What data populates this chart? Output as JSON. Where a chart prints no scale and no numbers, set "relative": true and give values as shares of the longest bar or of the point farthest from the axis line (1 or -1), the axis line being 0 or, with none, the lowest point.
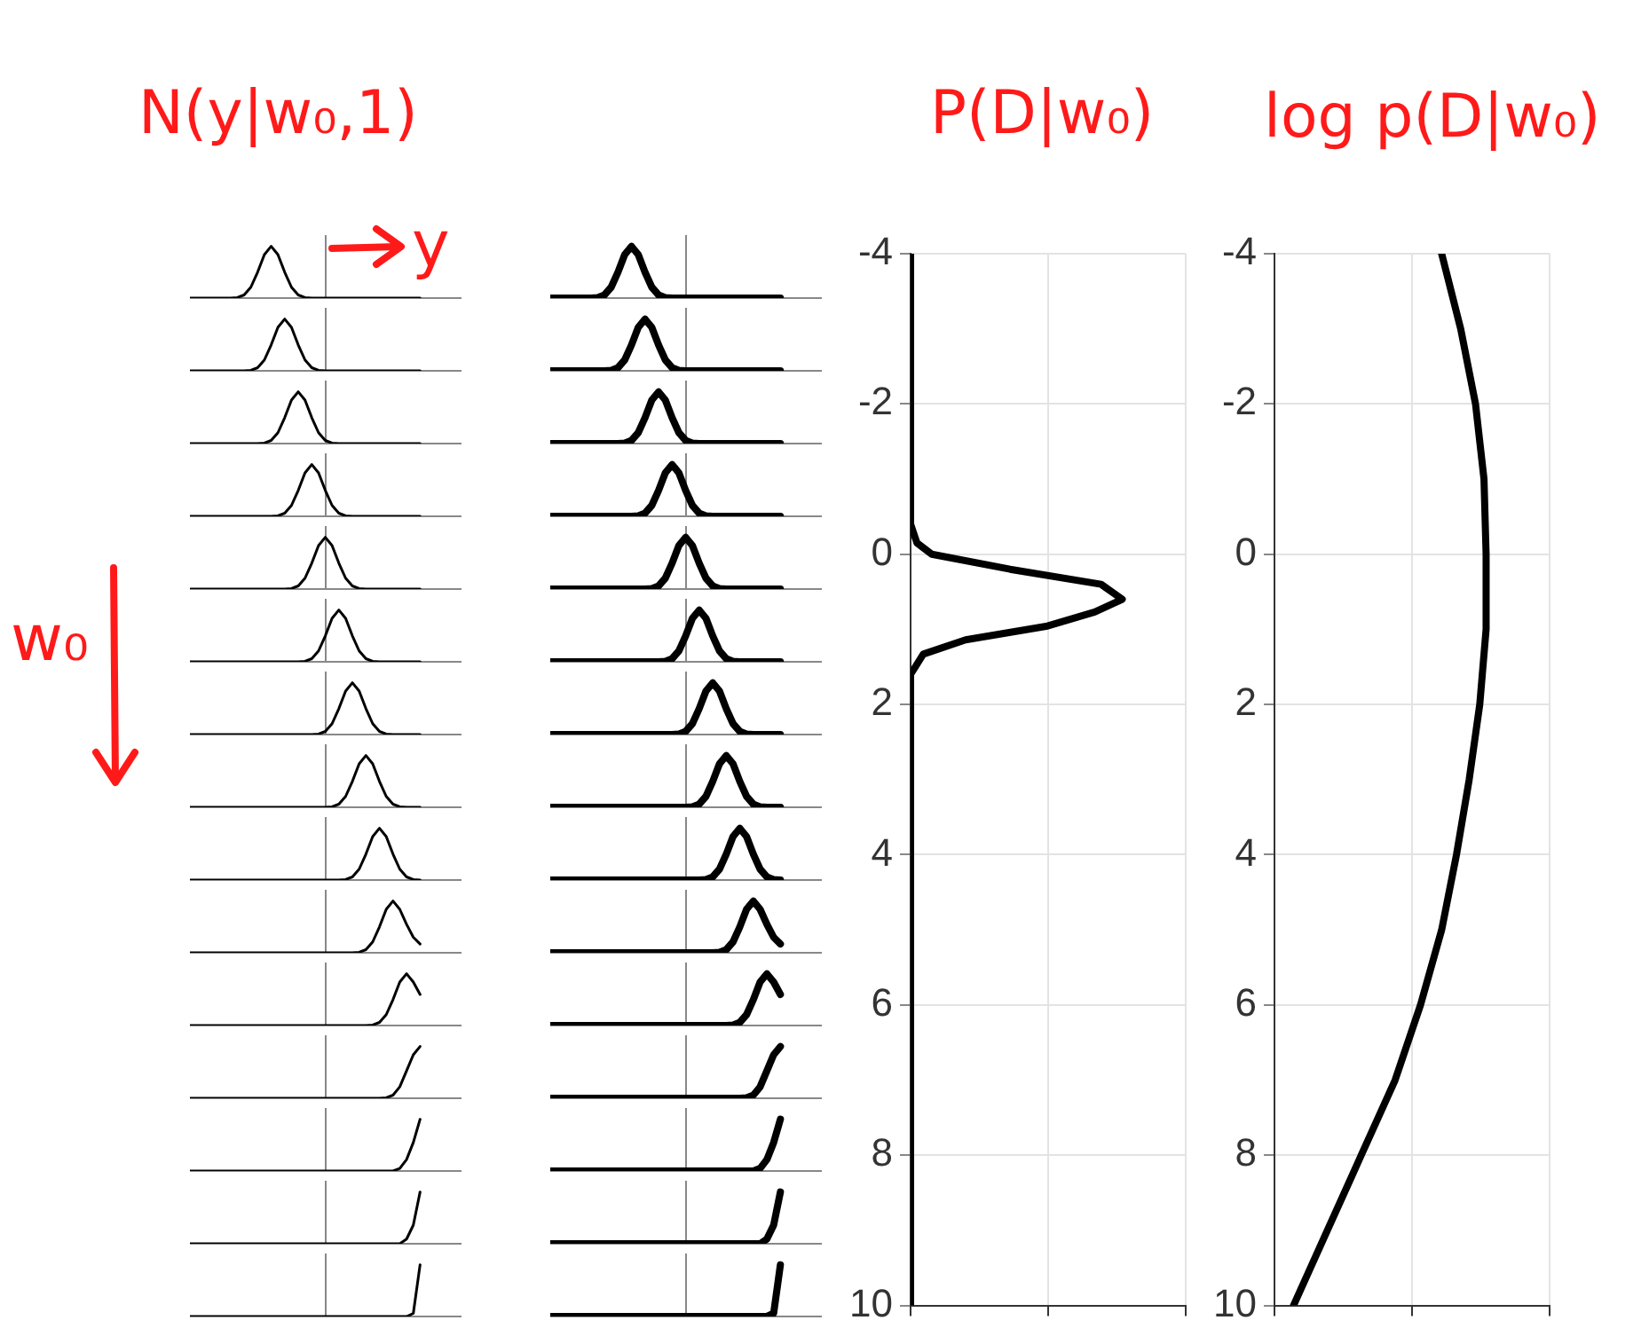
{
  "chart_data": [
    {
      "type": "line",
      "title": "N(y|w₀,1)",
      "annotations": [
        "y",
        "w₀"
      ],
      "relative": true,
      "tick_labels": false,
      "color": "#000000",
      "categories": [
        null,
        null,
        null,
        null,
        null,
        null,
        null,
        null,
        null,
        null,
        null,
        null,
        null,
        null,
        null,
        null,
        null,
        null,
        null,
        null,
        null,
        null,
        null,
        null,
        null,
        null,
        null,
        null,
        null,
        null,
        null,
        null,
        null,
        null,
        null
      ],
      "values": [
        0,
        0,
        0,
        0,
        0,
        0,
        0,
        0.01,
        0.06,
        0.21,
        0.5,
        0.84,
        1,
        0.84,
        0.5,
        0.21,
        0.06,
        0.01,
        0,
        0,
        0,
        0,
        0,
        0,
        0,
        0,
        0,
        0,
        0,
        0,
        0,
        0,
        0,
        0,
        0
      ]
    },
    {
      "type": "line",
      "relative": true,
      "tick_labels": false,
      "color": "#000000",
      "categories": [
        null,
        null,
        null,
        null,
        null,
        null,
        null,
        null,
        null,
        null,
        null,
        null,
        null,
        null,
        null,
        null,
        null,
        null,
        null,
        null,
        null,
        null,
        null,
        null,
        null,
        null,
        null,
        null,
        null,
        null,
        null,
        null,
        null,
        null,
        null
      ],
      "values": [
        0,
        0,
        0,
        0,
        0,
        0,
        0,
        0,
        0,
        0.01,
        0.06,
        0.21,
        0.5,
        0.84,
        1,
        0.84,
        0.5,
        0.21,
        0.06,
        0.01,
        0,
        0,
        0,
        0,
        0,
        0,
        0,
        0,
        0,
        0,
        0,
        0,
        0,
        0,
        0
      ]
    },
    {
      "type": "line",
      "relative": true,
      "tick_labels": false,
      "color": "#000000",
      "categories": [
        null,
        null,
        null,
        null,
        null,
        null,
        null,
        null,
        null,
        null,
        null,
        null,
        null,
        null,
        null,
        null,
        null,
        null,
        null,
        null,
        null,
        null,
        null,
        null,
        null,
        null,
        null,
        null,
        null,
        null,
        null,
        null,
        null,
        null,
        null
      ],
      "values": [
        0,
        0,
        0,
        0,
        0,
        0,
        0,
        0,
        0,
        0,
        0,
        0.01,
        0.06,
        0.21,
        0.5,
        0.84,
        1,
        0.84,
        0.5,
        0.21,
        0.06,
        0.01,
        0,
        0,
        0,
        0,
        0,
        0,
        0,
        0,
        0,
        0,
        0,
        0,
        0
      ]
    },
    {
      "type": "line",
      "relative": true,
      "tick_labels": false,
      "color": "#000000",
      "categories": [
        null,
        null,
        null,
        null,
        null,
        null,
        null,
        null,
        null,
        null,
        null,
        null,
        null,
        null,
        null,
        null,
        null,
        null,
        null,
        null,
        null,
        null,
        null,
        null,
        null,
        null,
        null,
        null,
        null,
        null,
        null,
        null,
        null,
        null,
        null
      ],
      "values": [
        0,
        0,
        0,
        0,
        0,
        0,
        0,
        0,
        0,
        0,
        0,
        0,
        0,
        0.01,
        0.06,
        0.21,
        0.5,
        0.84,
        1,
        0.84,
        0.5,
        0.21,
        0.06,
        0.01,
        0,
        0,
        0,
        0,
        0,
        0,
        0,
        0,
        0,
        0,
        0
      ]
    },
    {
      "type": "line",
      "relative": true,
      "tick_labels": false,
      "color": "#000000",
      "categories": [
        null,
        null,
        null,
        null,
        null,
        null,
        null,
        null,
        null,
        null,
        null,
        null,
        null,
        null,
        null,
        null,
        null,
        null,
        null,
        null,
        null,
        null,
        null,
        null,
        null,
        null,
        null,
        null,
        null,
        null,
        null,
        null,
        null,
        null,
        null
      ],
      "values": [
        0,
        0,
        0,
        0,
        0,
        0,
        0,
        0,
        0,
        0,
        0,
        0,
        0,
        0,
        0,
        0.01,
        0.06,
        0.21,
        0.5,
        0.84,
        1,
        0.84,
        0.5,
        0.21,
        0.06,
        0.01,
        0,
        0,
        0,
        0,
        0,
        0,
        0,
        0,
        0
      ]
    },
    {
      "type": "line",
      "relative": true,
      "tick_labels": false,
      "color": "#000000",
      "categories": [
        null,
        null,
        null,
        null,
        null,
        null,
        null,
        null,
        null,
        null,
        null,
        null,
        null,
        null,
        null,
        null,
        null,
        null,
        null,
        null,
        null,
        null,
        null,
        null,
        null,
        null,
        null,
        null,
        null,
        null,
        null,
        null,
        null,
        null,
        null
      ],
      "values": [
        0,
        0,
        0,
        0,
        0,
        0,
        0,
        0,
        0,
        0,
        0,
        0,
        0,
        0,
        0,
        0,
        0,
        0.01,
        0.06,
        0.21,
        0.5,
        0.84,
        1,
        0.84,
        0.5,
        0.21,
        0.06,
        0.01,
        0,
        0,
        0,
        0,
        0,
        0,
        0
      ]
    },
    {
      "type": "line",
      "relative": true,
      "tick_labels": false,
      "color": "#000000",
      "categories": [
        null,
        null,
        null,
        null,
        null,
        null,
        null,
        null,
        null,
        null,
        null,
        null,
        null,
        null,
        null,
        null,
        null,
        null,
        null,
        null,
        null,
        null,
        null,
        null,
        null,
        null,
        null,
        null,
        null,
        null,
        null,
        null,
        null,
        null,
        null
      ],
      "values": [
        0,
        0,
        0,
        0,
        0,
        0,
        0,
        0,
        0,
        0,
        0,
        0,
        0,
        0,
        0,
        0,
        0,
        0,
        0,
        0.01,
        0.06,
        0.21,
        0.5,
        0.84,
        1,
        0.84,
        0.5,
        0.21,
        0.06,
        0.01,
        0,
        0,
        0,
        0,
        0
      ]
    },
    {
      "type": "line",
      "relative": true,
      "tick_labels": false,
      "color": "#000000",
      "categories": [
        null,
        null,
        null,
        null,
        null,
        null,
        null,
        null,
        null,
        null,
        null,
        null,
        null,
        null,
        null,
        null,
        null,
        null,
        null,
        null,
        null,
        null,
        null,
        null,
        null,
        null,
        null,
        null,
        null,
        null,
        null,
        null,
        null,
        null,
        null
      ],
      "values": [
        0,
        0,
        0,
        0,
        0,
        0,
        0,
        0,
        0,
        0,
        0,
        0,
        0,
        0,
        0,
        0,
        0,
        0,
        0,
        0,
        0,
        0.01,
        0.06,
        0.21,
        0.5,
        0.84,
        1,
        0.84,
        0.5,
        0.21,
        0.06,
        0.01,
        0,
        0,
        0
      ]
    },
    {
      "type": "line",
      "relative": true,
      "tick_labels": false,
      "color": "#000000",
      "categories": [
        null,
        null,
        null,
        null,
        null,
        null,
        null,
        null,
        null,
        null,
        null,
        null,
        null,
        null,
        null,
        null,
        null,
        null,
        null,
        null,
        null,
        null,
        null,
        null,
        null,
        null,
        null,
        null,
        null,
        null,
        null,
        null,
        null,
        null,
        null
      ],
      "values": [
        0,
        0,
        0,
        0,
        0,
        0,
        0,
        0,
        0,
        0,
        0,
        0,
        0,
        0,
        0,
        0,
        0,
        0,
        0,
        0,
        0,
        0,
        0,
        0.01,
        0.06,
        0.21,
        0.5,
        0.84,
        1,
        0.84,
        0.5,
        0.21,
        0.06,
        0.01,
        0
      ]
    },
    {
      "type": "line",
      "relative": true,
      "tick_labels": false,
      "color": "#000000",
      "categories": [
        null,
        null,
        null,
        null,
        null,
        null,
        null,
        null,
        null,
        null,
        null,
        null,
        null,
        null,
        null,
        null,
        null,
        null,
        null,
        null,
        null,
        null,
        null,
        null,
        null,
        null,
        null,
        null,
        null,
        null,
        null,
        null,
        null,
        null,
        null
      ],
      "values": [
        0,
        0,
        0,
        0,
        0,
        0,
        0,
        0,
        0,
        0,
        0,
        0,
        0,
        0,
        0,
        0,
        0,
        0,
        0,
        0,
        0,
        0,
        0,
        0,
        0,
        0.01,
        0.06,
        0.21,
        0.5,
        0.84,
        1,
        0.84,
        0.55,
        0.3,
        0.17
      ]
    },
    {
      "type": "line",
      "relative": true,
      "tick_labels": false,
      "color": "#000000",
      "categories": [
        null,
        null,
        null,
        null,
        null,
        null,
        null,
        null,
        null,
        null,
        null,
        null,
        null,
        null,
        null,
        null,
        null,
        null,
        null,
        null,
        null,
        null,
        null,
        null,
        null,
        null,
        null,
        null,
        null,
        null,
        null,
        null,
        null,
        null,
        null
      ],
      "values": [
        0,
        0,
        0,
        0,
        0,
        0,
        0,
        0,
        0,
        0,
        0,
        0,
        0,
        0,
        0,
        0,
        0,
        0,
        0,
        0,
        0,
        0,
        0,
        0,
        0,
        0,
        0,
        0.01,
        0.06,
        0.21,
        0.5,
        0.84,
        1,
        0.84,
        0.6
      ]
    },
    {
      "type": "line",
      "relative": true,
      "tick_labels": false,
      "color": "#000000",
      "categories": [
        null,
        null,
        null,
        null,
        null,
        null,
        null,
        null,
        null,
        null,
        null,
        null,
        null,
        null,
        null,
        null,
        null,
        null,
        null,
        null,
        null,
        null,
        null,
        null,
        null,
        null,
        null,
        null,
        null,
        null,
        null,
        null,
        null,
        null,
        null
      ],
      "values": [
        0,
        0,
        0,
        0,
        0,
        0,
        0,
        0,
        0,
        0,
        0,
        0,
        0,
        0,
        0,
        0,
        0,
        0,
        0,
        0,
        0,
        0,
        0,
        0,
        0,
        0,
        0,
        0,
        0,
        0.01,
        0.06,
        0.22,
        0.53,
        0.84,
        1
      ]
    },
    {
      "type": "line",
      "relative": true,
      "tick_labels": false,
      "color": "#000000",
      "categories": [
        null,
        null,
        null,
        null,
        null,
        null,
        null,
        null,
        null,
        null,
        null,
        null,
        null,
        null,
        null,
        null,
        null,
        null,
        null,
        null,
        null,
        null,
        null,
        null,
        null,
        null,
        null,
        null,
        null,
        null,
        null,
        null,
        null,
        null,
        null
      ],
      "values": [
        0,
        0,
        0,
        0,
        0,
        0,
        0,
        0,
        0,
        0,
        0,
        0,
        0,
        0,
        0,
        0,
        0,
        0,
        0,
        0,
        0,
        0,
        0,
        0,
        0,
        0,
        0,
        0,
        0,
        0,
        0,
        0.05,
        0.22,
        0.55,
        1
      ]
    },
    {
      "type": "line",
      "relative": true,
      "tick_labels": false,
      "color": "#000000",
      "categories": [
        null,
        null,
        null,
        null,
        null,
        null,
        null,
        null,
        null,
        null,
        null,
        null,
        null,
        null,
        null,
        null,
        null,
        null,
        null,
        null,
        null,
        null,
        null,
        null,
        null,
        null,
        null,
        null,
        null,
        null,
        null,
        null,
        null,
        null,
        null
      ],
      "values": [
        0,
        0,
        0,
        0,
        0,
        0,
        0,
        0,
        0,
        0,
        0,
        0,
        0,
        0,
        0,
        0,
        0,
        0,
        0,
        0,
        0,
        0,
        0,
        0,
        0,
        0,
        0,
        0,
        0,
        0,
        0,
        0,
        0.09,
        0.36,
        1
      ]
    },
    {
      "type": "line",
      "relative": true,
      "tick_labels": false,
      "color": "#000000",
      "categories": [
        null,
        null,
        null,
        null,
        null,
        null,
        null,
        null,
        null,
        null,
        null,
        null,
        null,
        null,
        null,
        null,
        null,
        null,
        null,
        null,
        null,
        null,
        null,
        null,
        null,
        null,
        null,
        null,
        null,
        null,
        null,
        null,
        null,
        null,
        null
      ],
      "values": [
        0,
        0,
        0,
        0,
        0,
        0,
        0,
        0,
        0,
        0,
        0,
        0,
        0,
        0,
        0,
        0,
        0,
        0,
        0,
        0,
        0,
        0,
        0,
        0,
        0,
        0,
        0,
        0,
        0,
        0,
        0,
        0,
        0,
        0.06,
        1
      ]
    },
    {
      "type": "line",
      "relative": true,
      "tick_labels": false,
      "color": "#000000",
      "categories": [
        null,
        null,
        null,
        null,
        null,
        null,
        null,
        null,
        null,
        null,
        null,
        null,
        null,
        null,
        null,
        null,
        null,
        null,
        null,
        null,
        null,
        null,
        null,
        null,
        null,
        null,
        null,
        null,
        null,
        null,
        null,
        null,
        null,
        null,
        null
      ],
      "values": [
        0,
        0,
        0,
        0,
        0,
        0,
        0,
        0.01,
        0.06,
        0.21,
        0.5,
        0.84,
        1,
        0.84,
        0.5,
        0.21,
        0.06,
        0.01,
        0,
        0,
        0,
        0,
        0,
        0,
        0,
        0,
        0,
        0,
        0,
        0,
        0,
        0,
        0,
        0,
        0
      ]
    },
    {
      "type": "line",
      "relative": true,
      "tick_labels": false,
      "color": "#000000",
      "categories": [
        null,
        null,
        null,
        null,
        null,
        null,
        null,
        null,
        null,
        null,
        null,
        null,
        null,
        null,
        null,
        null,
        null,
        null,
        null,
        null,
        null,
        null,
        null,
        null,
        null,
        null,
        null,
        null,
        null,
        null,
        null,
        null,
        null,
        null,
        null
      ],
      "values": [
        0,
        0,
        0,
        0,
        0,
        0,
        0,
        0,
        0,
        0.01,
        0.06,
        0.21,
        0.5,
        0.84,
        1,
        0.84,
        0.5,
        0.21,
        0.06,
        0.01,
        0,
        0,
        0,
        0,
        0,
        0,
        0,
        0,
        0,
        0,
        0,
        0,
        0,
        0,
        0
      ]
    },
    {
      "type": "line",
      "relative": true,
      "tick_labels": false,
      "color": "#000000",
      "categories": [
        null,
        null,
        null,
        null,
        null,
        null,
        null,
        null,
        null,
        null,
        null,
        null,
        null,
        null,
        null,
        null,
        null,
        null,
        null,
        null,
        null,
        null,
        null,
        null,
        null,
        null,
        null,
        null,
        null,
        null,
        null,
        null,
        null,
        null,
        null
      ],
      "values": [
        0,
        0,
        0,
        0,
        0,
        0,
        0,
        0,
        0,
        0,
        0,
        0.01,
        0.06,
        0.21,
        0.5,
        0.84,
        1,
        0.84,
        0.5,
        0.21,
        0.06,
        0.01,
        0,
        0,
        0,
        0,
        0,
        0,
        0,
        0,
        0,
        0,
        0,
        0,
        0
      ]
    },
    {
      "type": "line",
      "relative": true,
      "tick_labels": false,
      "color": "#000000",
      "categories": [
        null,
        null,
        null,
        null,
        null,
        null,
        null,
        null,
        null,
        null,
        null,
        null,
        null,
        null,
        null,
        null,
        null,
        null,
        null,
        null,
        null,
        null,
        null,
        null,
        null,
        null,
        null,
        null,
        null,
        null,
        null,
        null,
        null,
        null,
        null
      ],
      "values": [
        0,
        0,
        0,
        0,
        0,
        0,
        0,
        0,
        0,
        0,
        0,
        0,
        0,
        0.01,
        0.06,
        0.21,
        0.5,
        0.84,
        1,
        0.84,
        0.5,
        0.21,
        0.06,
        0.01,
        0,
        0,
        0,
        0,
        0,
        0,
        0,
        0,
        0,
        0,
        0
      ]
    },
    {
      "type": "line",
      "relative": true,
      "tick_labels": false,
      "color": "#000000",
      "categories": [
        null,
        null,
        null,
        null,
        null,
        null,
        null,
        null,
        null,
        null,
        null,
        null,
        null,
        null,
        null,
        null,
        null,
        null,
        null,
        null,
        null,
        null,
        null,
        null,
        null,
        null,
        null,
        null,
        null,
        null,
        null,
        null,
        null,
        null,
        null
      ],
      "values": [
        0,
        0,
        0,
        0,
        0,
        0,
        0,
        0,
        0,
        0,
        0,
        0,
        0,
        0,
        0,
        0.01,
        0.06,
        0.21,
        0.5,
        0.84,
        1,
        0.84,
        0.5,
        0.21,
        0.06,
        0.01,
        0,
        0,
        0,
        0,
        0,
        0,
        0,
        0,
        0
      ]
    },
    {
      "type": "line",
      "relative": true,
      "tick_labels": false,
      "color": "#000000",
      "categories": [
        null,
        null,
        null,
        null,
        null,
        null,
        null,
        null,
        null,
        null,
        null,
        null,
        null,
        null,
        null,
        null,
        null,
        null,
        null,
        null,
        null,
        null,
        null,
        null,
        null,
        null,
        null,
        null,
        null,
        null,
        null,
        null,
        null,
        null,
        null
      ],
      "values": [
        0,
        0,
        0,
        0,
        0,
        0,
        0,
        0,
        0,
        0,
        0,
        0,
        0,
        0,
        0,
        0,
        0,
        0.01,
        0.06,
        0.21,
        0.5,
        0.84,
        1,
        0.84,
        0.5,
        0.21,
        0.06,
        0.01,
        0,
        0,
        0,
        0,
        0,
        0,
        0
      ]
    },
    {
      "type": "line",
      "relative": true,
      "tick_labels": false,
      "color": "#000000",
      "categories": [
        null,
        null,
        null,
        null,
        null,
        null,
        null,
        null,
        null,
        null,
        null,
        null,
        null,
        null,
        null,
        null,
        null,
        null,
        null,
        null,
        null,
        null,
        null,
        null,
        null,
        null,
        null,
        null,
        null,
        null,
        null,
        null,
        null,
        null,
        null
      ],
      "values": [
        0,
        0,
        0,
        0,
        0,
        0,
        0,
        0,
        0,
        0,
        0,
        0,
        0,
        0,
        0,
        0,
        0,
        0,
        0,
        0.01,
        0.06,
        0.21,
        0.5,
        0.84,
        1,
        0.84,
        0.5,
        0.21,
        0.06,
        0.01,
        0,
        0,
        0,
        0,
        0
      ]
    },
    {
      "type": "line",
      "relative": true,
      "tick_labels": false,
      "color": "#000000",
      "categories": [
        null,
        null,
        null,
        null,
        null,
        null,
        null,
        null,
        null,
        null,
        null,
        null,
        null,
        null,
        null,
        null,
        null,
        null,
        null,
        null,
        null,
        null,
        null,
        null,
        null,
        null,
        null,
        null,
        null,
        null,
        null,
        null,
        null,
        null,
        null
      ],
      "values": [
        0,
        0,
        0,
        0,
        0,
        0,
        0,
        0,
        0,
        0,
        0,
        0,
        0,
        0,
        0,
        0,
        0,
        0,
        0,
        0,
        0,
        0.01,
        0.06,
        0.21,
        0.5,
        0.84,
        1,
        0.84,
        0.5,
        0.21,
        0.06,
        0.01,
        0,
        0,
        0
      ]
    },
    {
      "type": "line",
      "relative": true,
      "tick_labels": false,
      "color": "#000000",
      "categories": [
        null,
        null,
        null,
        null,
        null,
        null,
        null,
        null,
        null,
        null,
        null,
        null,
        null,
        null,
        null,
        null,
        null,
        null,
        null,
        null,
        null,
        null,
        null,
        null,
        null,
        null,
        null,
        null,
        null,
        null,
        null,
        null,
        null,
        null,
        null
      ],
      "values": [
        0,
        0,
        0,
        0,
        0,
        0,
        0,
        0,
        0,
        0,
        0,
        0,
        0,
        0,
        0,
        0,
        0,
        0,
        0,
        0,
        0,
        0,
        0,
        0.01,
        0.06,
        0.21,
        0.5,
        0.84,
        1,
        0.84,
        0.5,
        0.21,
        0.06,
        0.01,
        0
      ]
    },
    {
      "type": "line",
      "relative": true,
      "tick_labels": false,
      "color": "#000000",
      "categories": [
        null,
        null,
        null,
        null,
        null,
        null,
        null,
        null,
        null,
        null,
        null,
        null,
        null,
        null,
        null,
        null,
        null,
        null,
        null,
        null,
        null,
        null,
        null,
        null,
        null,
        null,
        null,
        null,
        null,
        null,
        null,
        null,
        null,
        null,
        null
      ],
      "values": [
        0,
        0,
        0,
        0,
        0,
        0,
        0,
        0,
        0,
        0,
        0,
        0,
        0,
        0,
        0,
        0,
        0,
        0,
        0,
        0,
        0,
        0,
        0,
        0,
        0,
        0.01,
        0.06,
        0.21,
        0.5,
        0.84,
        1,
        0.84,
        0.55,
        0.3,
        0.17
      ]
    },
    {
      "type": "line",
      "relative": true,
      "tick_labels": false,
      "color": "#000000",
      "categories": [
        null,
        null,
        null,
        null,
        null,
        null,
        null,
        null,
        null,
        null,
        null,
        null,
        null,
        null,
        null,
        null,
        null,
        null,
        null,
        null,
        null,
        null,
        null,
        null,
        null,
        null,
        null,
        null,
        null,
        null,
        null,
        null,
        null,
        null,
        null
      ],
      "values": [
        0,
        0,
        0,
        0,
        0,
        0,
        0,
        0,
        0,
        0,
        0,
        0,
        0,
        0,
        0,
        0,
        0,
        0,
        0,
        0,
        0,
        0,
        0,
        0,
        0,
        0,
        0,
        0.01,
        0.06,
        0.21,
        0.5,
        0.84,
        1,
        0.84,
        0.6
      ]
    },
    {
      "type": "line",
      "relative": true,
      "tick_labels": false,
      "color": "#000000",
      "categories": [
        null,
        null,
        null,
        null,
        null,
        null,
        null,
        null,
        null,
        null,
        null,
        null,
        null,
        null,
        null,
        null,
        null,
        null,
        null,
        null,
        null,
        null,
        null,
        null,
        null,
        null,
        null,
        null,
        null,
        null,
        null,
        null,
        null,
        null,
        null
      ],
      "values": [
        0,
        0,
        0,
        0,
        0,
        0,
        0,
        0,
        0,
        0,
        0,
        0,
        0,
        0,
        0,
        0,
        0,
        0,
        0,
        0,
        0,
        0,
        0,
        0,
        0,
        0,
        0,
        0,
        0,
        0.01,
        0.06,
        0.22,
        0.53,
        0.84,
        1
      ]
    },
    {
      "type": "line",
      "relative": true,
      "tick_labels": false,
      "color": "#000000",
      "categories": [
        null,
        null,
        null,
        null,
        null,
        null,
        null,
        null,
        null,
        null,
        null,
        null,
        null,
        null,
        null,
        null,
        null,
        null,
        null,
        null,
        null,
        null,
        null,
        null,
        null,
        null,
        null,
        null,
        null,
        null,
        null,
        null,
        null,
        null,
        null
      ],
      "values": [
        0,
        0,
        0,
        0,
        0,
        0,
        0,
        0,
        0,
        0,
        0,
        0,
        0,
        0,
        0,
        0,
        0,
        0,
        0,
        0,
        0,
        0,
        0,
        0,
        0,
        0,
        0,
        0,
        0,
        0,
        0,
        0.05,
        0.22,
        0.55,
        1
      ]
    },
    {
      "type": "line",
      "relative": true,
      "tick_labels": false,
      "color": "#000000",
      "categories": [
        null,
        null,
        null,
        null,
        null,
        null,
        null,
        null,
        null,
        null,
        null,
        null,
        null,
        null,
        null,
        null,
        null,
        null,
        null,
        null,
        null,
        null,
        null,
        null,
        null,
        null,
        null,
        null,
        null,
        null,
        null,
        null,
        null,
        null,
        null
      ],
      "values": [
        0,
        0,
        0,
        0,
        0,
        0,
        0,
        0,
        0,
        0,
        0,
        0,
        0,
        0,
        0,
        0,
        0,
        0,
        0,
        0,
        0,
        0,
        0,
        0,
        0,
        0,
        0,
        0,
        0,
        0,
        0,
        0,
        0.09,
        0.36,
        1
      ]
    },
    {
      "type": "line",
      "relative": true,
      "tick_labels": false,
      "color": "#000000",
      "categories": [
        null,
        null,
        null,
        null,
        null,
        null,
        null,
        null,
        null,
        null,
        null,
        null,
        null,
        null,
        null,
        null,
        null,
        null,
        null,
        null,
        null,
        null,
        null,
        null,
        null,
        null,
        null,
        null,
        null,
        null,
        null,
        null,
        null,
        null,
        null
      ],
      "values": [
        0,
        0,
        0,
        0,
        0,
        0,
        0,
        0,
        0,
        0,
        0,
        0,
        0,
        0,
        0,
        0,
        0,
        0,
        0,
        0,
        0,
        0,
        0,
        0,
        0,
        0,
        0,
        0,
        0,
        0,
        0,
        0,
        0,
        0.06,
        1
      ]
    },
    {
      "type": "line",
      "title": "P(D|w₀)",
      "relative": true,
      "orientation": "horizontal",
      "ylim": [
        10,
        -4
      ],
      "yticks": [
        -4,
        -2,
        0,
        2,
        4,
        6,
        8,
        10
      ],
      "grid": true,
      "color": "#000000",
      "x": [
        -4,
        -0.4,
        -0.15,
        0,
        0.2,
        0.4,
        0.6,
        0.77,
        0.96,
        1.14,
        1.33,
        1.6,
        10
      ],
      "values": [
        0,
        0,
        0.03,
        0.1,
        0.47,
        0.9,
        1,
        0.87,
        0.64,
        0.26,
        0.06,
        0,
        0
      ]
    },
    {
      "type": "line",
      "title": "log p(D|w₀)",
      "relative": true,
      "orientation": "horizontal",
      "ylim": [
        10,
        -4
      ],
      "yticks": [
        -4,
        -2,
        0,
        2,
        4,
        6,
        8,
        10
      ],
      "grid": true,
      "color": "#000000",
      "x": [
        -4,
        -3,
        -2,
        -1,
        0,
        1,
        2,
        3,
        4,
        5,
        6,
        7,
        8,
        9,
        10
      ],
      "values": [
        0.79,
        0.88,
        0.95,
        0.99,
        1,
        1,
        0.97,
        0.92,
        0.86,
        0.79,
        0.69,
        0.57,
        0.41,
        0.25,
        0.09
      ]
    }
  ]
}
